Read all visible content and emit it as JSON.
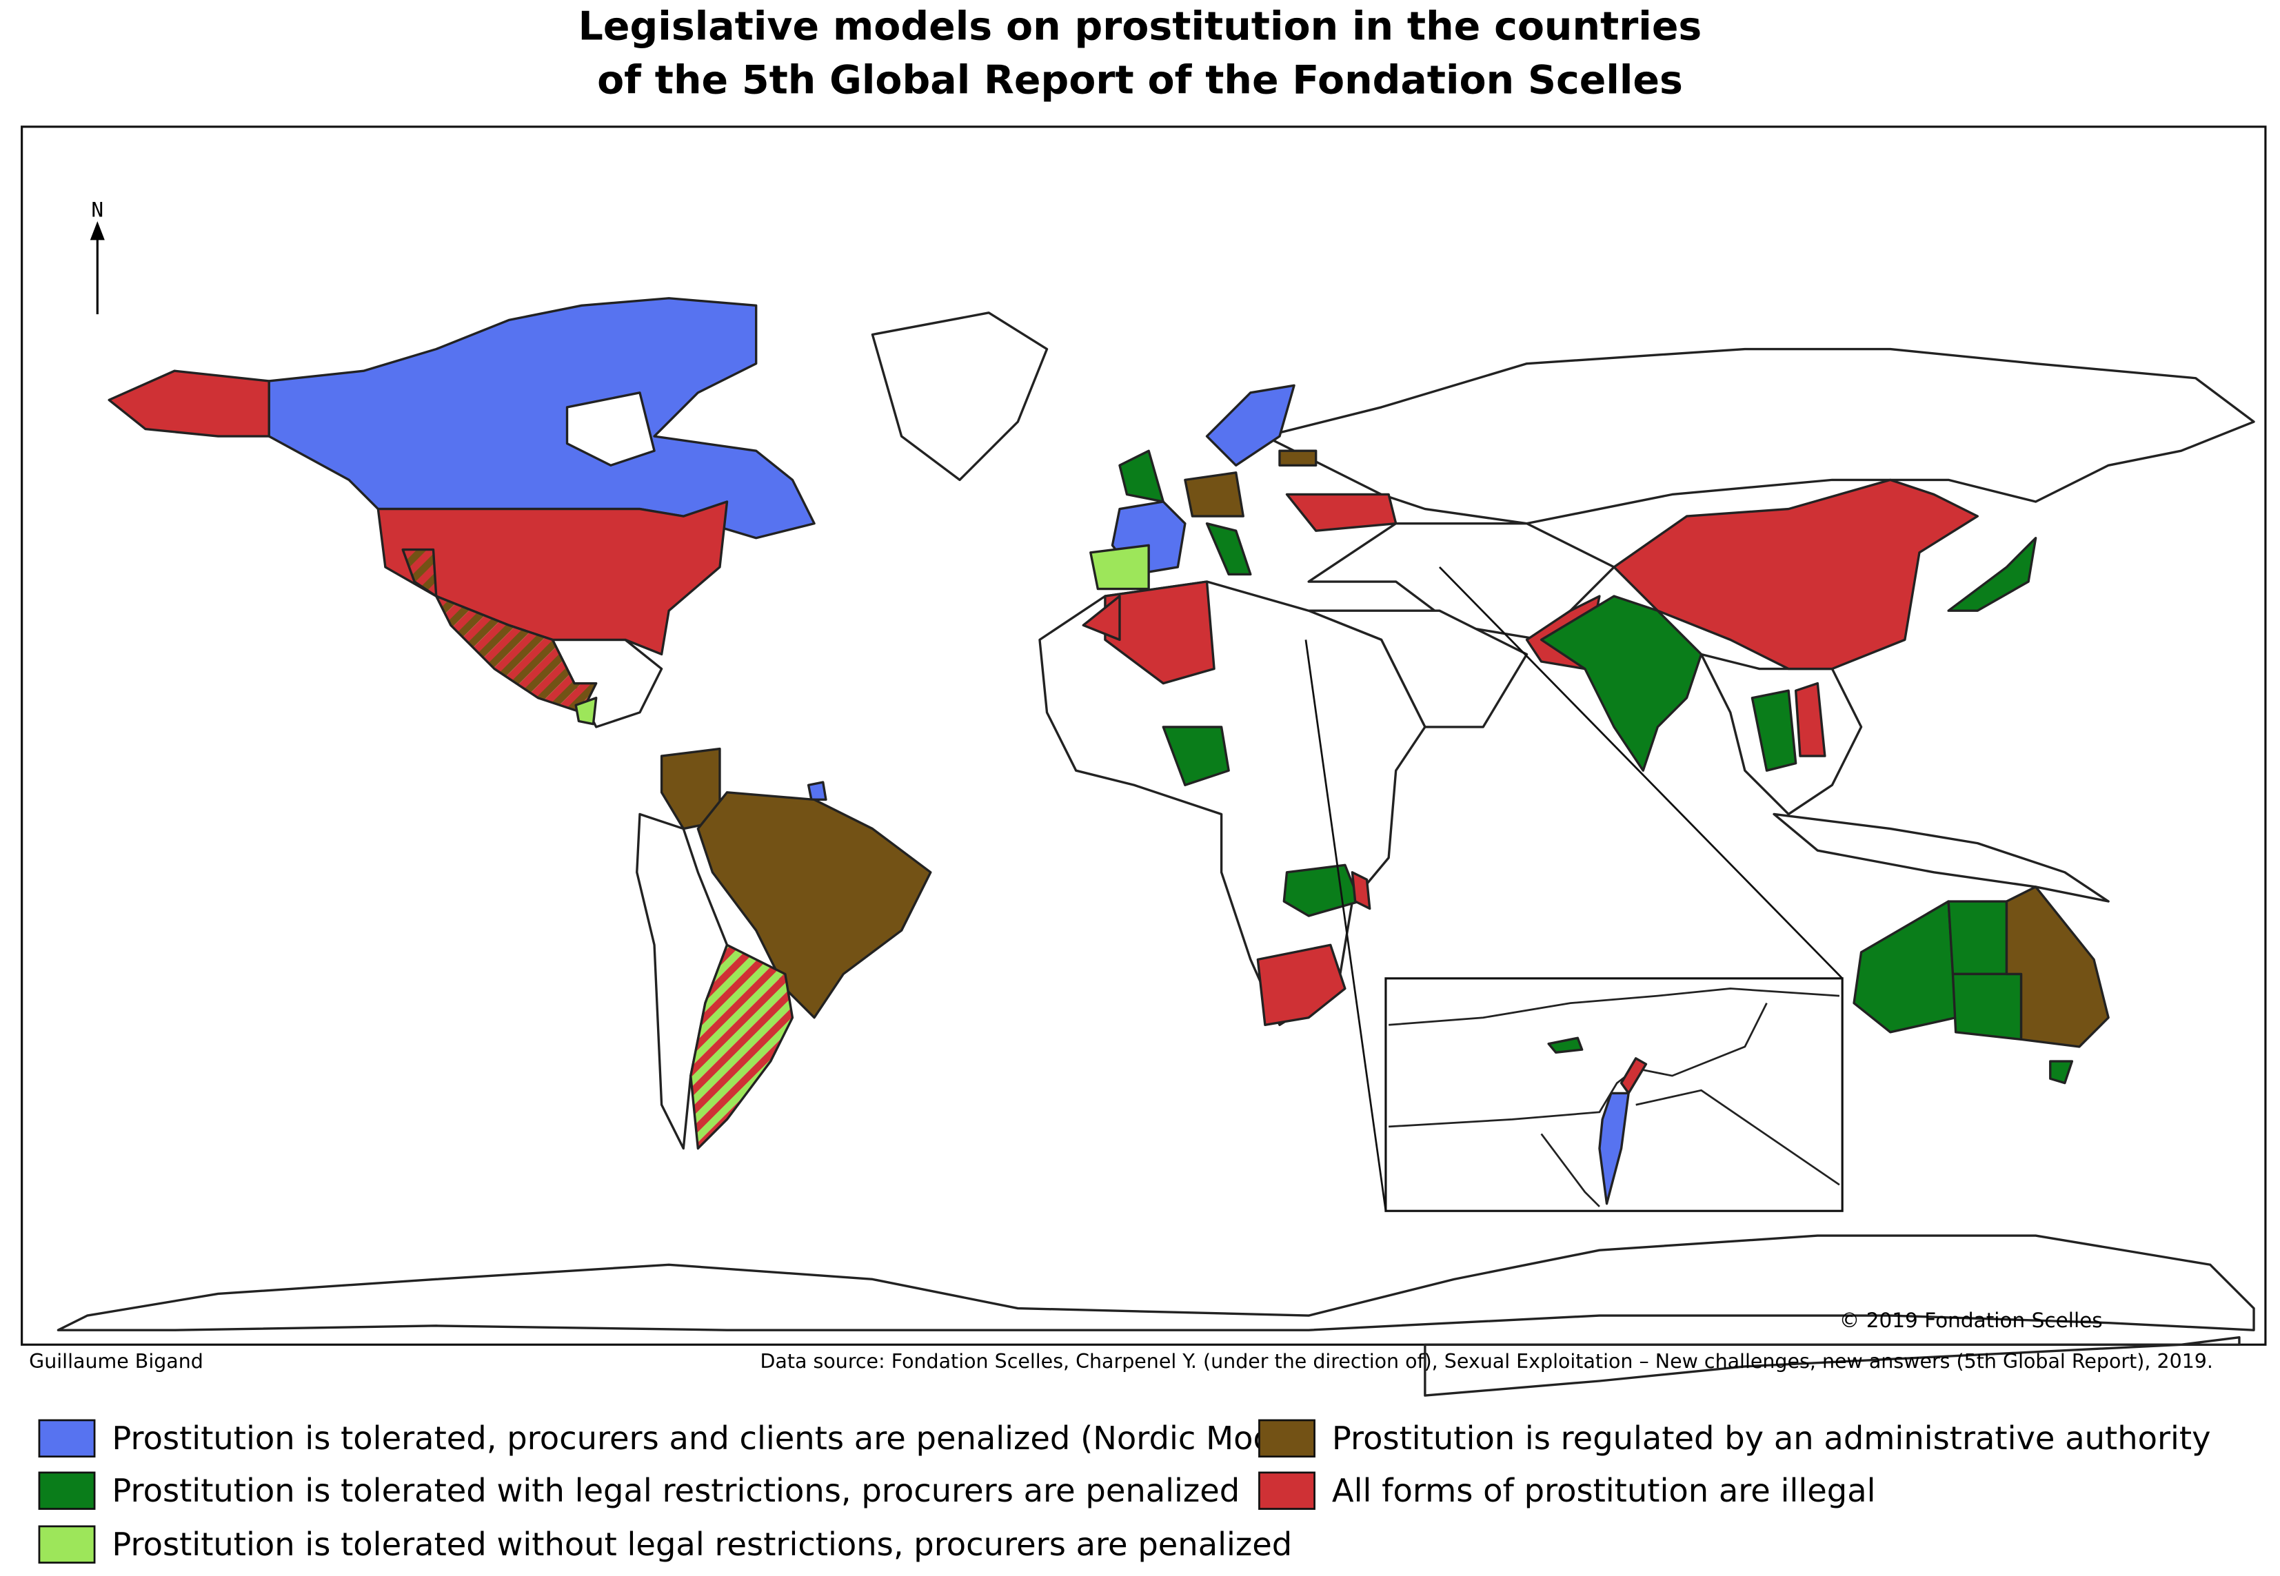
{
  "title": [
    "Legislative models on prostitution in the countries",
    "of the 5th Global Report of the Fondation Scelles"
  ],
  "north_label": "N",
  "copyright": "© 2019 Fondation Scelles",
  "author": "Guillaume Bigand",
  "source": "Data source: Fondation Scelles, Charpenel Y. (under the direction of), Sexual Exploitation – New challenges, new answers (5th Global Report), 2019.",
  "legend": [
    {
      "label": "Prostitution is tolerated, procurers and clients are penalized (Nordic Model)",
      "color": "#5773f0"
    },
    {
      "label": "Prostitution is tolerated with legal restrictions, procurers are penalized",
      "color": "#0a7d1a"
    },
    {
      "label": "Prostitution is tolerated without legal restrictions, procurers are penalized",
      "color": "#9de65a"
    },
    {
      "label": "Prostitution is regulated by an administrative authority",
      "color": "#735215"
    },
    {
      "label": "All forms of prostitution are illegal",
      "color": "#cf3135"
    }
  ]
}
